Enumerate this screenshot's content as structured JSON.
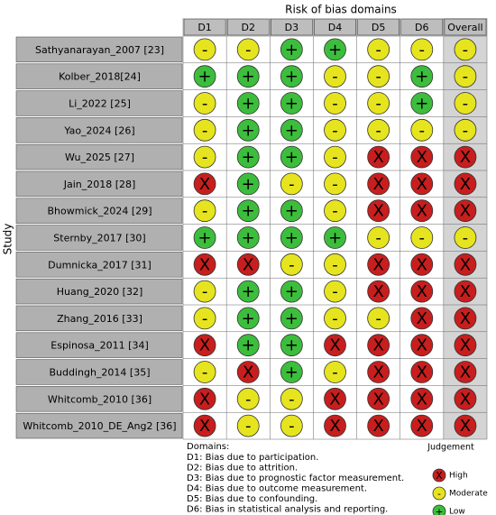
{
  "title": "Risk of bias domains",
  "y_label": "Study",
  "columns": [
    "D1",
    "D2",
    "D3",
    "D4",
    "D5",
    "D6",
    "Overall"
  ],
  "rows": [
    {
      "study": "Sathyanarayan_2007 [23]",
      "judgements": [
        "-",
        "-",
        "+",
        "+",
        "-",
        "-",
        "-"
      ]
    },
    {
      "study": "Kolber_2018[24]",
      "judgements": [
        "+",
        "+",
        "+",
        "-",
        "-",
        "+",
        "-"
      ]
    },
    {
      "study": "Li_2022 [25]",
      "judgements": [
        "-",
        "+",
        "+",
        "-",
        "-",
        "+",
        "-"
      ]
    },
    {
      "study": "Yao_2024 [26]",
      "judgements": [
        "-",
        "+",
        "+",
        "-",
        "-",
        "-",
        "-"
      ]
    },
    {
      "study": "Wu_2025 [27]",
      "judgements": [
        "-",
        "+",
        "+",
        "-",
        "X",
        "X",
        "X"
      ]
    },
    {
      "study": "Jain_2018 [28]",
      "judgements": [
        "X",
        "+",
        "-",
        "-",
        "X",
        "X",
        "X"
      ]
    },
    {
      "study": "Bhowmick_2024 [29]",
      "judgements": [
        "-",
        "+",
        "+",
        "-",
        "X",
        "X",
        "X"
      ]
    },
    {
      "study": "Sternby_2017 [30]",
      "judgements": [
        "+",
        "+",
        "+",
        "+",
        "-",
        "-",
        "-"
      ]
    },
    {
      "study": "Dumnicka_2017 [31]",
      "judgements": [
        "X",
        "X",
        "-",
        "-",
        "X",
        "X",
        "X"
      ]
    },
    {
      "study": "Huang_2020 [32]",
      "judgements": [
        "-",
        "+",
        "+",
        "-",
        "X",
        "X",
        "X"
      ]
    },
    {
      "study": "Zhang_2016 [33]",
      "judgements": [
        "-",
        "+",
        "+",
        "-",
        "-",
        "X",
        "X"
      ]
    },
    {
      "study": "Espinosa_2011 [34]",
      "judgements": [
        "X",
        "+",
        "+",
        "X",
        "X",
        "X",
        "X"
      ]
    },
    {
      "study": "Buddingh_2014 [35]",
      "judgements": [
        "-",
        "X",
        "+",
        "-",
        "X",
        "X",
        "X"
      ]
    },
    {
      "study": "Whitcomb_2010 [36]",
      "judgements": [
        "X",
        "-",
        "-",
        "X",
        "X",
        "X",
        "X"
      ]
    },
    {
      "study": "Whitcomb_2010_DE_Ang2 [36]",
      "judgements": [
        "X",
        "-",
        "-",
        "X",
        "X",
        "X",
        "X"
      ]
    }
  ],
  "domains_title": "Domains:",
  "domains": [
    "D1: Bias due to participation.",
    "D2: Bias due to attrition.",
    "D3: Bias due to prognostic factor measurement.",
    "D4: Bias due to outcome measurement.",
    "D5: Bias due to confounding.",
    "D6: Bias in statistical analysis and reporting."
  ],
  "legend": {
    "title": "Judgement",
    "items": [
      {
        "label": "High",
        "symbol": "X",
        "color": "#c81e1e"
      },
      {
        "label": "Moderate",
        "symbol": "-",
        "color": "#e6e41e"
      },
      {
        "label": "Low",
        "symbol": "+",
        "color": "#3cbe3c"
      }
    ]
  }
}
